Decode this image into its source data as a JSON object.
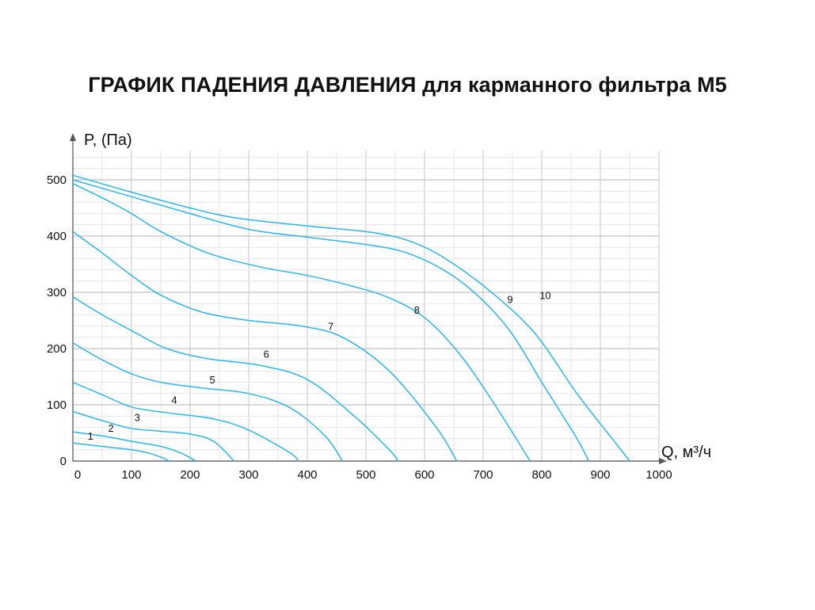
{
  "title": "ГРАФИК ПАДЕНИЯ ДАВЛЕНИЯ для карманного фильтра М5",
  "chart_data": {
    "type": "line",
    "title": "ГРАФИК ПАДЕНИЯ ДАВЛЕНИЯ для карманного фильтра М5",
    "xlabel": "Q, м³/ч",
    "ylabel": "P, (Па)",
    "xlim": [
      0,
      1000
    ],
    "ylim": [
      0,
      500
    ],
    "x_ticks": [
      0,
      100,
      200,
      300,
      400,
      500,
      600,
      700,
      800,
      900,
      1000
    ],
    "y_ticks": [
      0,
      100,
      200,
      300,
      400,
      500
    ],
    "grid": true,
    "line_color": "#29b6e8",
    "series": [
      {
        "name": "1",
        "points": [
          [
            0,
            32
          ],
          [
            50,
            26
          ],
          [
            100,
            20
          ],
          [
            130,
            14
          ],
          [
            150,
            7
          ],
          [
            165,
            0
          ]
        ]
      },
      {
        "name": "2",
        "points": [
          [
            0,
            52
          ],
          [
            60,
            43
          ],
          [
            100,
            35
          ],
          [
            150,
            26
          ],
          [
            185,
            14
          ],
          [
            210,
            0
          ]
        ]
      },
      {
        "name": "3",
        "points": [
          [
            0,
            88
          ],
          [
            50,
            72
          ],
          [
            100,
            58
          ],
          [
            150,
            53
          ],
          [
            200,
            48
          ],
          [
            240,
            35
          ],
          [
            275,
            0
          ]
        ]
      },
      {
        "name": "4",
        "points": [
          [
            0,
            140
          ],
          [
            50,
            118
          ],
          [
            100,
            96
          ],
          [
            160,
            86
          ],
          [
            240,
            75
          ],
          [
            300,
            55
          ],
          [
            370,
            15
          ],
          [
            385,
            0
          ]
        ]
      },
      {
        "name": "5",
        "points": [
          [
            0,
            210
          ],
          [
            50,
            180
          ],
          [
            100,
            155
          ],
          [
            150,
            140
          ],
          [
            220,
            130
          ],
          [
            300,
            120
          ],
          [
            370,
            95
          ],
          [
            430,
            45
          ],
          [
            460,
            0
          ]
        ]
      },
      {
        "name": "6",
        "points": [
          [
            0,
            292
          ],
          [
            50,
            260
          ],
          [
            100,
            232
          ],
          [
            160,
            200
          ],
          [
            230,
            182
          ],
          [
            320,
            170
          ],
          [
            400,
            145
          ],
          [
            480,
            80
          ],
          [
            540,
            20
          ],
          [
            555,
            0
          ]
        ]
      },
      {
        "name": "7",
        "points": [
          [
            0,
            408
          ],
          [
            50,
            370
          ],
          [
            100,
            330
          ],
          [
            150,
            295
          ],
          [
            220,
            265
          ],
          [
            300,
            250
          ],
          [
            390,
            240
          ],
          [
            460,
            220
          ],
          [
            540,
            160
          ],
          [
            620,
            60
          ],
          [
            655,
            0
          ]
        ]
      },
      {
        "name": "8",
        "points": [
          [
            0,
            493
          ],
          [
            50,
            468
          ],
          [
            100,
            440
          ],
          [
            150,
            408
          ],
          [
            230,
            370
          ],
          [
            320,
            345
          ],
          [
            400,
            330
          ],
          [
            480,
            310
          ],
          [
            540,
            290
          ],
          [
            600,
            255
          ],
          [
            660,
            190
          ],
          [
            720,
            100
          ],
          [
            780,
            0
          ]
        ]
      },
      {
        "name": "9",
        "points": [
          [
            0,
            500
          ],
          [
            100,
            470
          ],
          [
            200,
            440
          ],
          [
            300,
            412
          ],
          [
            400,
            398
          ],
          [
            500,
            385
          ],
          [
            570,
            370
          ],
          [
            640,
            335
          ],
          [
            700,
            285
          ],
          [
            750,
            225
          ],
          [
            800,
            140
          ],
          [
            860,
            40
          ],
          [
            880,
            0
          ]
        ]
      },
      {
        "name": "10",
        "points": [
          [
            0,
            508
          ],
          [
            100,
            478
          ],
          [
            200,
            450
          ],
          [
            280,
            432
          ],
          [
            400,
            418
          ],
          [
            520,
            405
          ],
          [
            590,
            385
          ],
          [
            650,
            350
          ],
          [
            720,
            295
          ],
          [
            790,
            225
          ],
          [
            860,
            120
          ],
          [
            920,
            40
          ],
          [
            950,
            0
          ]
        ]
      }
    ],
    "curve_labels": [
      {
        "text": "1",
        "x": 30,
        "y": 38
      },
      {
        "text": "2",
        "x": 65,
        "y": 52
      },
      {
        "text": "3",
        "x": 110,
        "y": 71
      },
      {
        "text": "4",
        "x": 173,
        "y": 102
      },
      {
        "text": "5",
        "x": 238,
        "y": 138
      },
      {
        "text": "6",
        "x": 330,
        "y": 184
      },
      {
        "text": "7",
        "x": 440,
        "y": 233
      },
      {
        "text": "8",
        "x": 587,
        "y": 262
      },
      {
        "text": "9",
        "x": 746,
        "y": 281
      },
      {
        "text": "10",
        "x": 806,
        "y": 288
      }
    ]
  }
}
